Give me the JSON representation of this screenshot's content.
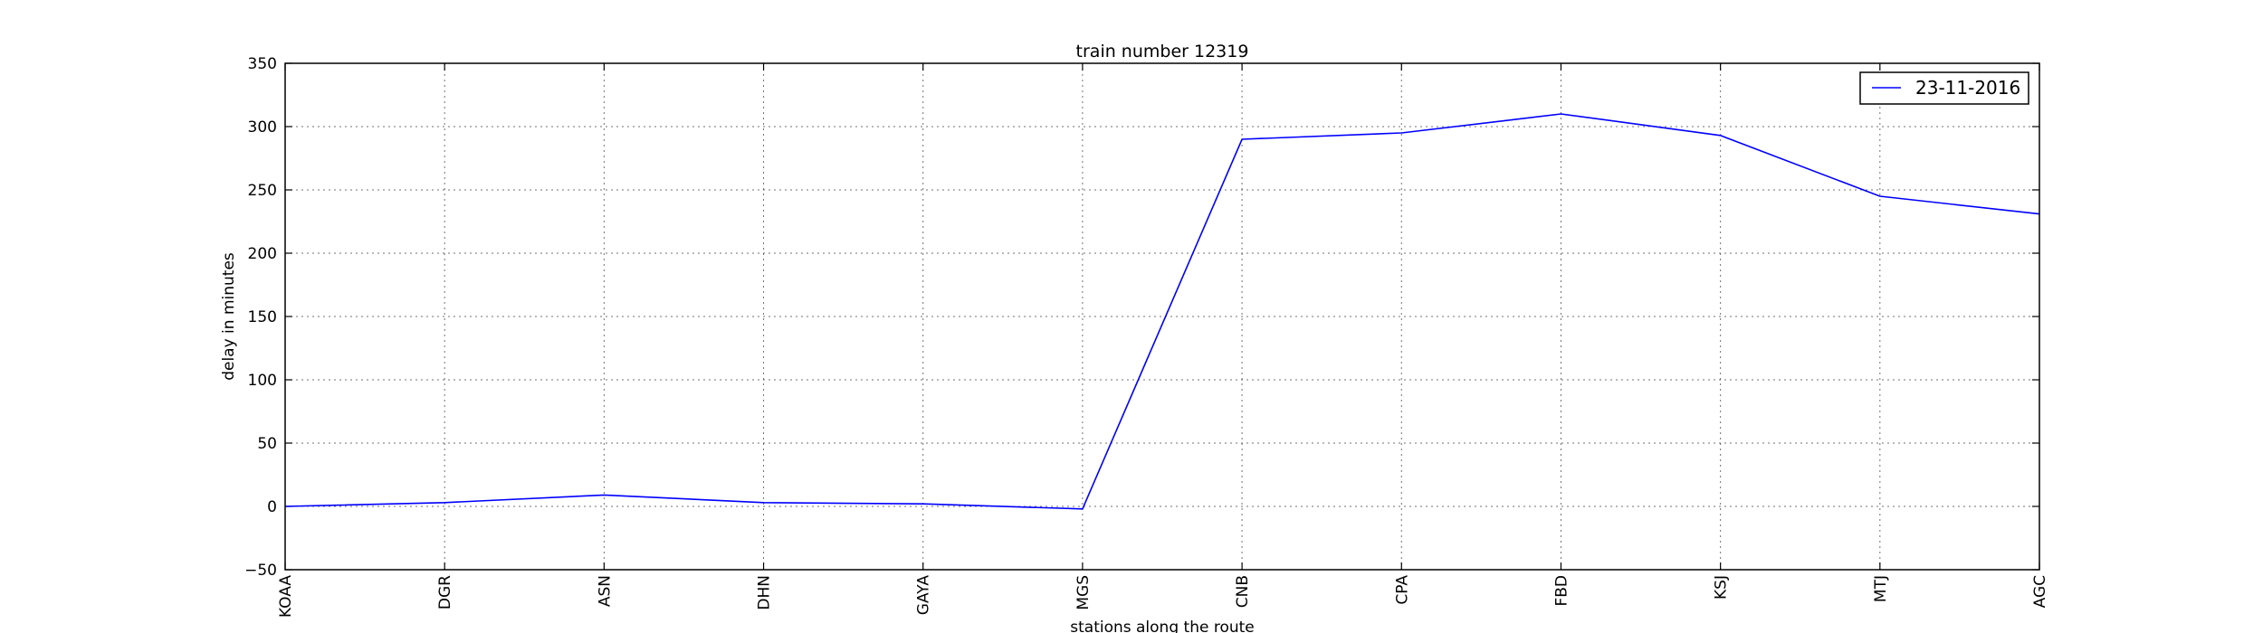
{
  "chart_data": {
    "type": "line",
    "title": "train number 12319",
    "xlabel": "stations along the route",
    "ylabel": "delay in minutes",
    "categories": [
      "KOAA",
      "DGR",
      "ASN",
      "DHN",
      "GAYA",
      "MGS",
      "CNB",
      "CPA",
      "FBD",
      "KSJ",
      "MTJ",
      "AGC"
    ],
    "series": [
      {
        "name": "23-11-2016",
        "color": "#0000ff",
        "values": [
          0,
          3,
          9,
          3,
          2,
          -2,
          290,
          295,
          310,
          293,
          245,
          231
        ]
      }
    ],
    "ylim": [
      -50,
      350
    ],
    "yticks": [
      -50,
      0,
      50,
      100,
      150,
      200,
      250,
      300,
      350
    ],
    "grid": true,
    "legend_position": "top-right"
  }
}
